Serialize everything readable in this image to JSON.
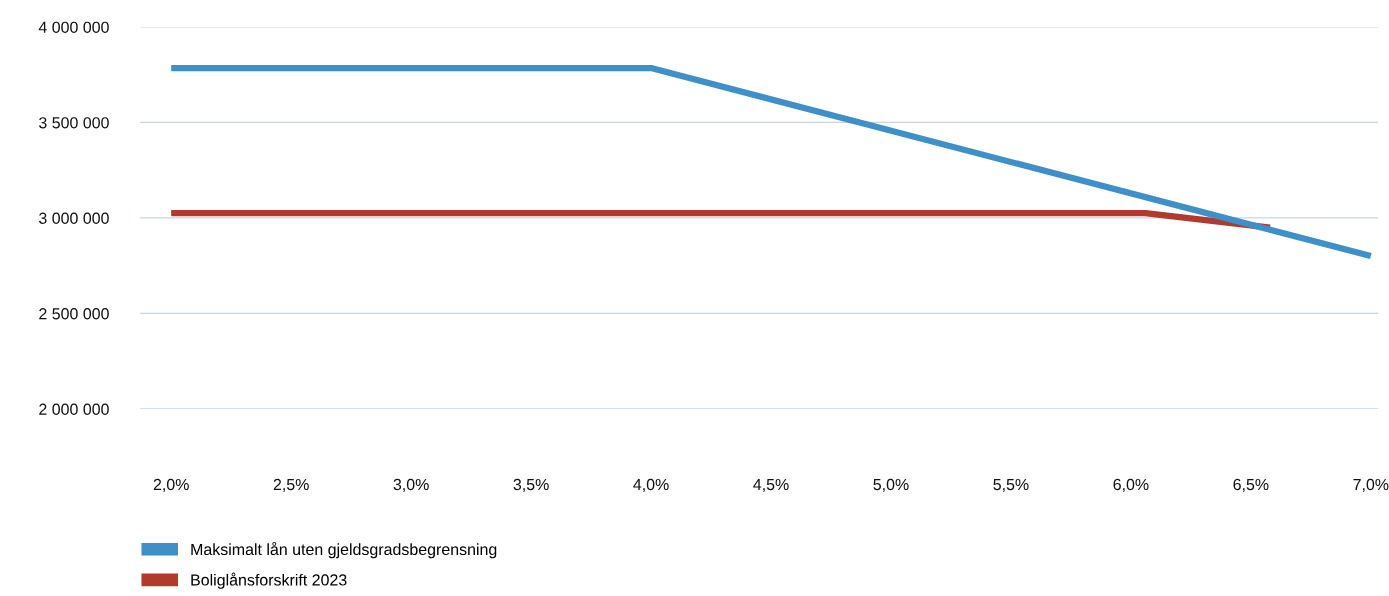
{
  "chart_data": {
    "type": "line",
    "xlim": [
      1.87,
      7.03
    ],
    "ylim": [
      2000000,
      4000000
    ],
    "xticks": [
      {
        "value": 2.0,
        "label": "2,0%"
      },
      {
        "value": 2.5,
        "label": "2,5%"
      },
      {
        "value": 3.0,
        "label": "3,0%"
      },
      {
        "value": 3.5,
        "label": "3,5%"
      },
      {
        "value": 4.0,
        "label": "4,0%"
      },
      {
        "value": 4.5,
        "label": "4,5%"
      },
      {
        "value": 5.0,
        "label": "5,0%"
      },
      {
        "value": 5.5,
        "label": "5,5%"
      },
      {
        "value": 6.0,
        "label": "6,0%"
      },
      {
        "value": 6.5,
        "label": "6,5%"
      },
      {
        "value": 7.0,
        "label": "7,0%"
      }
    ],
    "yticks": [
      {
        "value": 2000000,
        "label": "2 000 000"
      },
      {
        "value": 2500000,
        "label": "2 500 000"
      },
      {
        "value": 3000000,
        "label": "3 000 000"
      },
      {
        "value": 3500000,
        "label": "3 500 000"
      },
      {
        "value": 4000000,
        "label": "4 000 000"
      }
    ],
    "grid": "y",
    "legend": "bottom",
    "marker": "none",
    "line_style": "solid",
    "series": [
      {
        "name": "Boliglånsforskrift 2023",
        "color": "#b03a2e",
        "x": [
          2.0,
          6.06,
          6.58
        ],
        "values": [
          3025000,
          3025000,
          2950000
        ]
      },
      {
        "name": "Maksimalt lån uten gjeldsgradsbegrensning",
        "color": "#3f8fc8",
        "x": [
          2.0,
          4.0,
          7.0
        ],
        "values": [
          3785000,
          3785000,
          2801000
        ]
      }
    ]
  }
}
